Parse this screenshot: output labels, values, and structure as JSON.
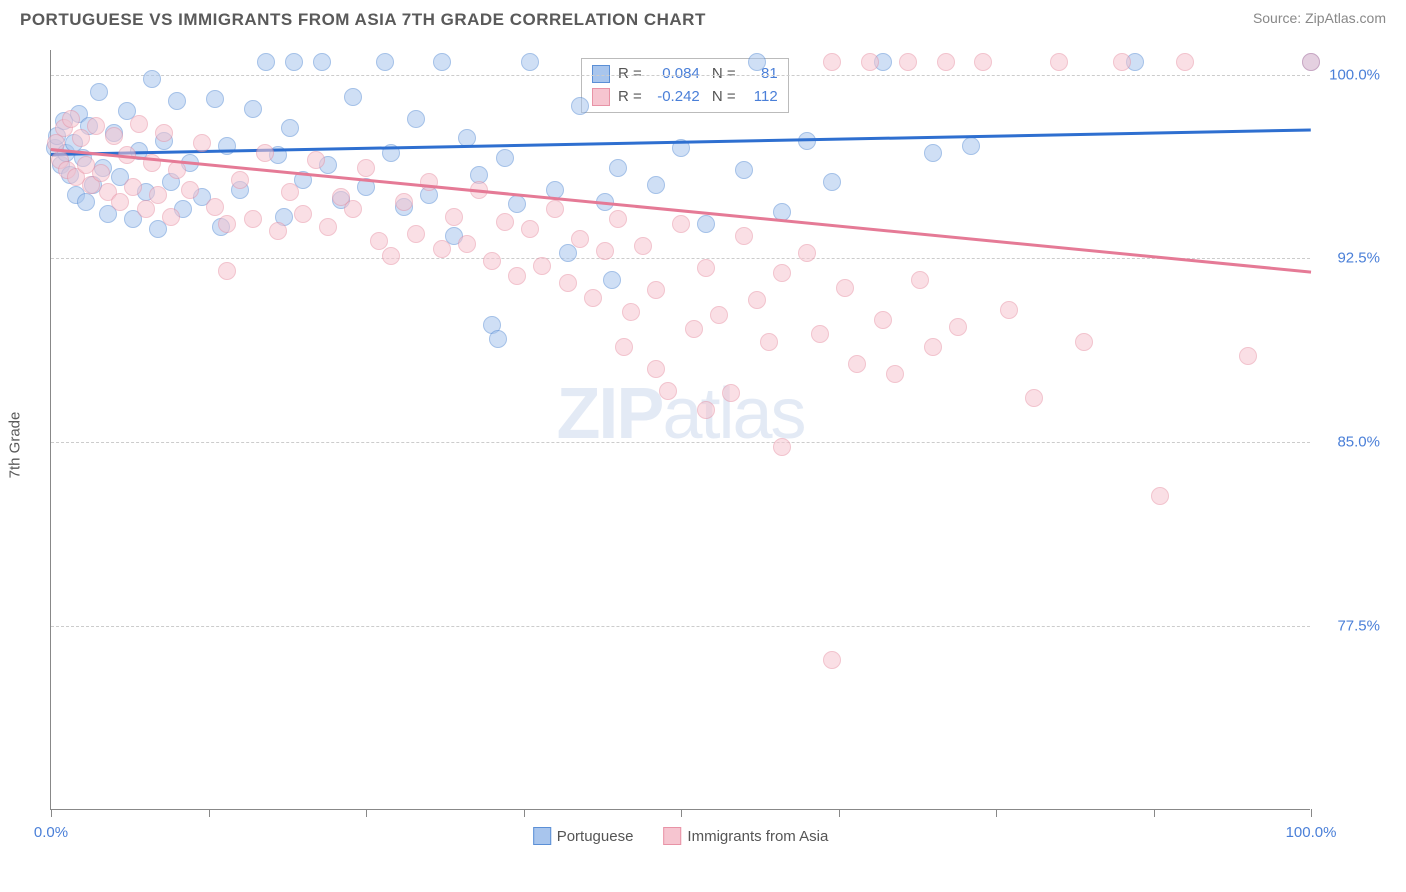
{
  "header": {
    "title": "PORTUGUESE VS IMMIGRANTS FROM ASIA 7TH GRADE CORRELATION CHART",
    "source": "Source: ZipAtlas.com"
  },
  "chart": {
    "type": "scatter",
    "watermark": "ZIPatlas",
    "y_axis_title": "7th Grade",
    "xlim": [
      0,
      100
    ],
    "ylim": [
      70,
      101
    ],
    "x_ticks": [
      0,
      12.5,
      25,
      37.5,
      50,
      62.5,
      75,
      87.5,
      100
    ],
    "x_labels_shown": {
      "0": "0.0%",
      "100": "100.0%"
    },
    "y_gridlines": [
      77.5,
      85.0,
      92.5,
      100.0
    ],
    "y_labels": [
      "77.5%",
      "85.0%",
      "92.5%",
      "100.0%"
    ],
    "background_color": "#ffffff",
    "grid_color": "#cccccc",
    "axis_color": "#888888",
    "label_color": "#4a7fd8",
    "marker_radius": 9,
    "marker_opacity": 0.55,
    "series": [
      {
        "name": "Portuguese",
        "fill_color": "#a8c5ed",
        "stroke_color": "#5b8fd6",
        "line_color": "#2e6fd0",
        "R": "0.084",
        "N": "81",
        "trend": {
          "x1": 0,
          "y1": 96.8,
          "x2": 100,
          "y2": 97.8
        },
        "points": [
          [
            0.3,
            97.0
          ],
          [
            0.5,
            97.5
          ],
          [
            0.8,
            96.3
          ],
          [
            1.0,
            98.1
          ],
          [
            1.2,
            96.8
          ],
          [
            1.5,
            95.9
          ],
          [
            1.8,
            97.2
          ],
          [
            2.0,
            95.1
          ],
          [
            2.2,
            98.4
          ],
          [
            2.5,
            96.6
          ],
          [
            2.8,
            94.8
          ],
          [
            3.0,
            97.9
          ],
          [
            3.3,
            95.5
          ],
          [
            3.8,
            99.3
          ],
          [
            4.1,
            96.2
          ],
          [
            4.5,
            94.3
          ],
          [
            5.0,
            97.6
          ],
          [
            5.5,
            95.8
          ],
          [
            6.0,
            98.5
          ],
          [
            6.5,
            94.1
          ],
          [
            7.0,
            96.9
          ],
          [
            7.5,
            95.2
          ],
          [
            8.0,
            99.8
          ],
          [
            8.5,
            93.7
          ],
          [
            9.0,
            97.3
          ],
          [
            9.5,
            95.6
          ],
          [
            10.0,
            98.9
          ],
          [
            10.5,
            94.5
          ],
          [
            11.0,
            96.4
          ],
          [
            12.0,
            95.0
          ],
          [
            13.0,
            99.0
          ],
          [
            13.5,
            93.8
          ],
          [
            14.0,
            97.1
          ],
          [
            15.0,
            95.3
          ],
          [
            16.0,
            98.6
          ],
          [
            17.1,
            100.5
          ],
          [
            18.0,
            96.7
          ],
          [
            19.3,
            100.5
          ],
          [
            18.5,
            94.2
          ],
          [
            19.0,
            97.8
          ],
          [
            20.0,
            95.7
          ],
          [
            21.5,
            100.5
          ],
          [
            22.0,
            96.3
          ],
          [
            23.0,
            94.9
          ],
          [
            24.0,
            99.1
          ],
          [
            25.0,
            95.4
          ],
          [
            26.5,
            100.5
          ],
          [
            27.0,
            96.8
          ],
          [
            28.0,
            94.6
          ],
          [
            29.0,
            98.2
          ],
          [
            30.0,
            95.1
          ],
          [
            31.0,
            100.5
          ],
          [
            32.0,
            93.4
          ],
          [
            33.0,
            97.4
          ],
          [
            34.0,
            95.9
          ],
          [
            35.0,
            89.8
          ],
          [
            36.0,
            96.6
          ],
          [
            37.0,
            94.7
          ],
          [
            38.0,
            100.5
          ],
          [
            35.5,
            89.2
          ],
          [
            40.0,
            95.3
          ],
          [
            41.0,
            92.7
          ],
          [
            42.0,
            98.7
          ],
          [
            44.0,
            94.8
          ],
          [
            45.0,
            96.2
          ],
          [
            44.5,
            91.6
          ],
          [
            48.0,
            95.5
          ],
          [
            50.0,
            97.0
          ],
          [
            52.0,
            93.9
          ],
          [
            55.0,
            96.1
          ],
          [
            56.0,
            100.5
          ],
          [
            58.0,
            94.4
          ],
          [
            60.0,
            97.3
          ],
          [
            62.0,
            95.6
          ],
          [
            66.0,
            100.5
          ],
          [
            70.0,
            96.8
          ],
          [
            73.0,
            97.1
          ],
          [
            86.0,
            100.5
          ],
          [
            100.0,
            100.5
          ]
        ]
      },
      {
        "name": "Immigrants from Asia",
        "fill_color": "#f6c5d0",
        "stroke_color": "#e893a6",
        "line_color": "#e57a96",
        "R": "-0.242",
        "N": "112",
        "trend": {
          "x1": 0,
          "y1": 97.0,
          "x2": 100,
          "y2": 92.0
        },
        "points": [
          [
            0.4,
            97.2
          ],
          [
            0.7,
            96.5
          ],
          [
            1.0,
            97.8
          ],
          [
            1.3,
            96.1
          ],
          [
            1.6,
            98.2
          ],
          [
            2.0,
            95.8
          ],
          [
            2.4,
            97.4
          ],
          [
            2.8,
            96.3
          ],
          [
            3.2,
            95.5
          ],
          [
            3.6,
            97.9
          ],
          [
            4.0,
            96.0
          ],
          [
            4.5,
            95.2
          ],
          [
            5.0,
            97.5
          ],
          [
            5.5,
            94.8
          ],
          [
            6.0,
            96.7
          ],
          [
            6.5,
            95.4
          ],
          [
            7.0,
            98.0
          ],
          [
            7.5,
            94.5
          ],
          [
            8.0,
            96.4
          ],
          [
            8.5,
            95.1
          ],
          [
            9.0,
            97.6
          ],
          [
            9.5,
            94.2
          ],
          [
            10.0,
            96.1
          ],
          [
            11.0,
            95.3
          ],
          [
            12.0,
            97.2
          ],
          [
            13.0,
            94.6
          ],
          [
            14.0,
            93.9
          ],
          [
            14.0,
            92.0
          ],
          [
            15.0,
            95.7
          ],
          [
            16.0,
            94.1
          ],
          [
            17.0,
            96.8
          ],
          [
            18.0,
            93.6
          ],
          [
            19.0,
            95.2
          ],
          [
            20.0,
            94.3
          ],
          [
            21.0,
            96.5
          ],
          [
            22.0,
            93.8
          ],
          [
            23.0,
            95.0
          ],
          [
            24.0,
            94.5
          ],
          [
            25.0,
            96.2
          ],
          [
            26.0,
            93.2
          ],
          [
            27.0,
            92.6
          ],
          [
            28.0,
            94.8
          ],
          [
            29.0,
            93.5
          ],
          [
            30.0,
            95.6
          ],
          [
            31.0,
            92.9
          ],
          [
            32.0,
            94.2
          ],
          [
            33.0,
            93.1
          ],
          [
            34.0,
            95.3
          ],
          [
            35.0,
            92.4
          ],
          [
            36.0,
            94.0
          ],
          [
            37.0,
            91.8
          ],
          [
            38.0,
            93.7
          ],
          [
            39.0,
            92.2
          ],
          [
            40.0,
            94.5
          ],
          [
            41.0,
            91.5
          ],
          [
            42.0,
            93.3
          ],
          [
            43.0,
            90.9
          ],
          [
            44.0,
            92.8
          ],
          [
            45.0,
            94.1
          ],
          [
            46.0,
            90.3
          ],
          [
            47.0,
            93.0
          ],
          [
            48.0,
            91.2
          ],
          [
            49.0,
            87.1
          ],
          [
            50.0,
            93.9
          ],
          [
            51.0,
            89.6
          ],
          [
            52.0,
            92.1
          ],
          [
            53.0,
            90.2
          ],
          [
            54.0,
            87.0
          ],
          [
            55.0,
            93.4
          ],
          [
            56.0,
            90.8
          ],
          [
            57.0,
            89.1
          ],
          [
            58.0,
            91.9
          ],
          [
            45.5,
            88.9
          ],
          [
            48.0,
            88.0
          ],
          [
            52.0,
            86.3
          ],
          [
            58.0,
            84.8
          ],
          [
            62.0,
            76.1
          ],
          [
            60.0,
            92.7
          ],
          [
            61.0,
            89.4
          ],
          [
            62.0,
            100.5
          ],
          [
            63.0,
            91.3
          ],
          [
            64.0,
            88.2
          ],
          [
            65.0,
            100.5
          ],
          [
            66.0,
            90.0
          ],
          [
            67.0,
            87.8
          ],
          [
            68.0,
            100.5
          ],
          [
            69.0,
            91.6
          ],
          [
            70.0,
            88.9
          ],
          [
            71.0,
            100.5
          ],
          [
            72.0,
            89.7
          ],
          [
            74.0,
            100.5
          ],
          [
            76.0,
            90.4
          ],
          [
            78.0,
            86.8
          ],
          [
            80.0,
            100.5
          ],
          [
            82.0,
            89.1
          ],
          [
            85.0,
            100.5
          ],
          [
            88.0,
            82.8
          ],
          [
            90.0,
            100.5
          ],
          [
            95.0,
            88.5
          ],
          [
            100.0,
            100.5
          ]
        ]
      }
    ],
    "bottom_legend": [
      {
        "label": "Portuguese",
        "fill": "#a8c5ed",
        "stroke": "#5b8fd6"
      },
      {
        "label": "Immigrants from Asia",
        "fill": "#f6c5d0",
        "stroke": "#e893a6"
      }
    ]
  }
}
